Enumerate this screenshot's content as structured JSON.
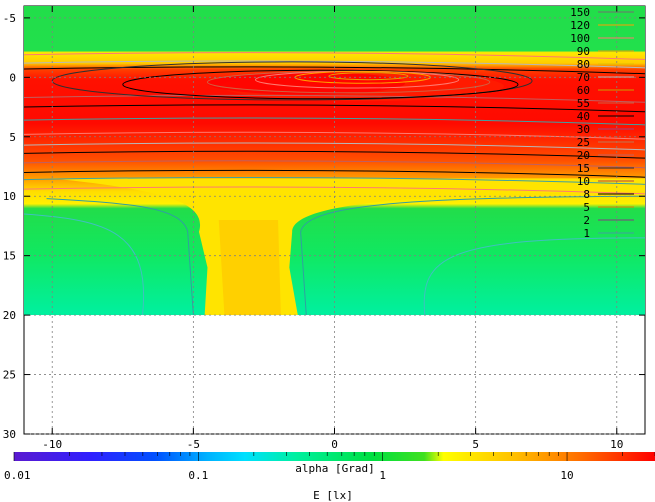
{
  "chart_data": {
    "type": "heatmap",
    "subtype": "contour map with color bar",
    "x": {
      "ticks": [
        -10,
        -5,
        0,
        5,
        10
      ],
      "tick_labels": [
        "-10",
        "-5",
        "0",
        "5",
        "10"
      ],
      "range": [
        -11,
        11
      ]
    },
    "y": {
      "ticks": [
        -5,
        0,
        5,
        10,
        15,
        20,
        25,
        30
      ],
      "tick_labels": [
        "-5",
        "0",
        "5",
        "10",
        "15",
        "20",
        "25",
        "30"
      ],
      "range": [
        -6,
        30
      ],
      "inverted": true
    },
    "data_extent": {
      "x": [
        -11,
        11
      ],
      "y": [
        -6,
        20
      ]
    },
    "grid": true,
    "legend_position": "top-right",
    "contour_levels": [
      {
        "label": "150",
        "color": "#707070"
      },
      {
        "label": "120",
        "color": "#ffa000"
      },
      {
        "label": "100",
        "color": "#ff7a70"
      },
      {
        "label": "90",
        "color": "#e8a000"
      },
      {
        "label": "80",
        "color": "#e0c000"
      },
      {
        "label": "70",
        "color": "#b8b8b8"
      },
      {
        "label": "60",
        "color": "#c8a000"
      },
      {
        "label": "55",
        "color": "#d06040"
      },
      {
        "label": "40",
        "color": "#000000"
      },
      {
        "label": "30",
        "color": "#a04080"
      },
      {
        "label": "25",
        "color": "#c07850"
      },
      {
        "label": "20",
        "color": "#c06060"
      },
      {
        "label": "15",
        "color": "#303030"
      },
      {
        "label": "10",
        "color": "#c04040"
      },
      {
        "label": "8",
        "color": "#000000"
      },
      {
        "label": "5",
        "color": "#e08000"
      },
      {
        "label": "2",
        "color": "#804080"
      },
      {
        "label": "1",
        "color": "#40a0a0"
      }
    ],
    "colorbar": {
      "scale": "log",
      "range": [
        0.01,
        30
      ],
      "tick_labels": [
        "0.01",
        "0.1",
        "1",
        "10"
      ],
      "label_top": "alpha [Grad]",
      "label_bottom": "E [lx]"
    },
    "field_bands": [
      {
        "y": [
          -6.0,
          -2.2
        ],
        "level": "green"
      },
      {
        "y": [
          -2.2,
          -1.2
        ],
        "level": "yellow"
      },
      {
        "y": [
          -1.2,
          8.0
        ],
        "level": "red-orange"
      },
      {
        "y": [
          8.0,
          10.0
        ],
        "level": "yellow"
      },
      {
        "y": [
          10.0,
          20.0
        ],
        "level": "green with central yellow column x∈[-4,-1.5]"
      }
    ],
    "peak_region": {
      "x": [
        -4,
        6
      ],
      "y": [
        -0.5,
        2
      ]
    }
  }
}
